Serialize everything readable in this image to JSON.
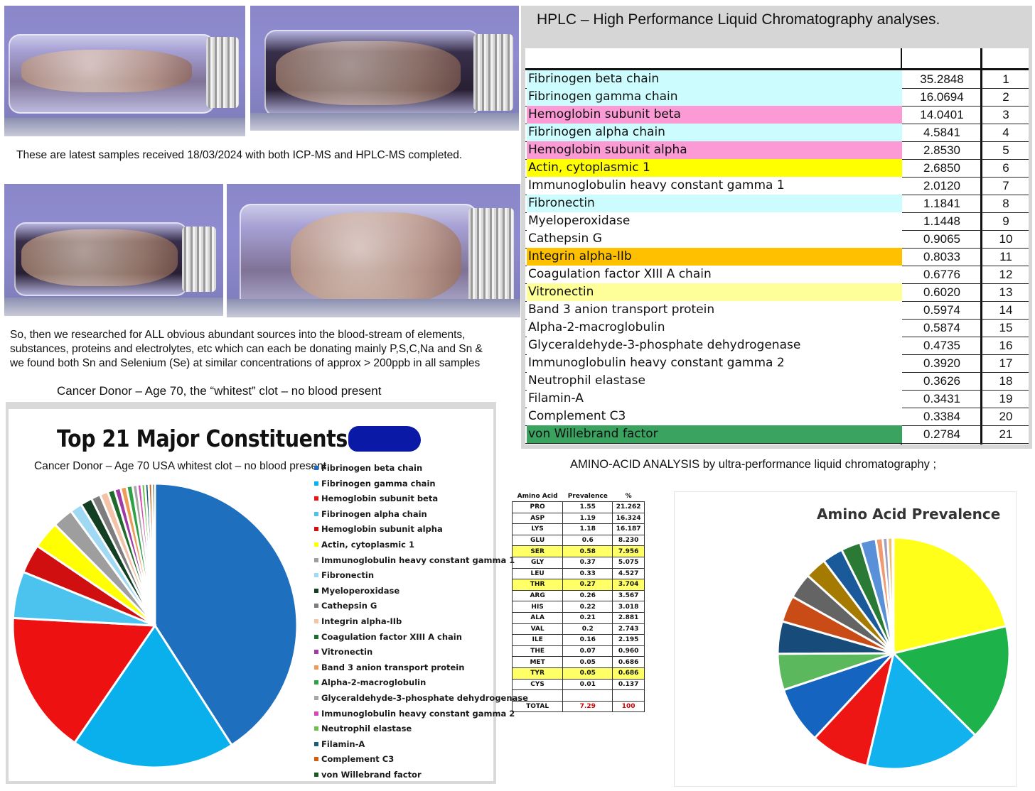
{
  "captions": {
    "samples": "These are latest samples received 18/03/2024 with both ICP-MS and HPLC-MS completed.",
    "research_1": "So, then we researched for ALL obvious abundant sources into the blood-stream of elements,",
    "research_2": "substances, proteins and electrolytes, etc which can each be donating mainly P,S,C,Na and Sn &",
    "research_3": "we found both Sn and Selenium (Se) at similar concentrations of approx > 200ppb in all samples"
  },
  "hplc": {
    "title": "HPLC – High Performance Liquid Chromatography analyses.",
    "rows": [
      {
        "name": "Fibrinogen beta chain",
        "value": "35.2848",
        "rank": "1",
        "color": "#ccfcfd"
      },
      {
        "name": "Fibrinogen gamma chain",
        "value": "16.0694",
        "rank": "2",
        "color": "#ccfcfd"
      },
      {
        "name": "Hemoglobin subunit beta",
        "value": "14.0401",
        "rank": "3",
        "color": "#fb9ad4"
      },
      {
        "name": "Fibrinogen alpha chain",
        "value": "4.5841",
        "rank": "4",
        "color": "#ccfcfd"
      },
      {
        "name": "Hemoglobin subunit alpha",
        "value": "2.8530",
        "rank": "5",
        "color": "#fb9ad4"
      },
      {
        "name": "Actin, cytoplasmic 1",
        "value": "2.6850",
        "rank": "6",
        "color": "#ffff00"
      },
      {
        "name": "Immunoglobulin heavy constant gamma 1",
        "value": "2.0120",
        "rank": "7",
        "color": "#ffffff"
      },
      {
        "name": "Fibronectin",
        "value": "1.1841",
        "rank": "8",
        "color": "#ccfcfd"
      },
      {
        "name": "Myeloperoxidase",
        "value": "1.1448",
        "rank": "9",
        "color": "#ffffff"
      },
      {
        "name": "Cathepsin G",
        "value": "0.9065",
        "rank": "10",
        "color": "#ffffff"
      },
      {
        "name": "Integrin alpha-IIb",
        "value": "0.8033",
        "rank": "11",
        "color": "#ffc000"
      },
      {
        "name": "Coagulation factor XIII A chain",
        "value": "0.6776",
        "rank": "12",
        "color": "#ffffff"
      },
      {
        "name": "Vitronectin",
        "value": "0.6020",
        "rank": "13",
        "color": "#ffff99"
      },
      {
        "name": "Band 3 anion transport protein",
        "value": "0.5974",
        "rank": "14",
        "color": "#ffffff"
      },
      {
        "name": "Alpha-2-macroglobulin",
        "value": "0.5874",
        "rank": "15",
        "color": "#ffffff"
      },
      {
        "name": "Glyceraldehyde-3-phosphate dehydrogenase",
        "value": "0.4735",
        "rank": "16",
        "color": "#ffffff"
      },
      {
        "name": "Immunoglobulin heavy constant gamma 2",
        "value": "0.3920",
        "rank": "17",
        "color": "#ffffff"
      },
      {
        "name": "Neutrophil elastase",
        "value": "0.3626",
        "rank": "18",
        "color": "#ffffff"
      },
      {
        "name": "Filamin-A",
        "value": "0.3431",
        "rank": "19",
        "color": "#ffffff"
      },
      {
        "name": "Complement C3",
        "value": "0.3384",
        "rank": "20",
        "color": "#ffffff"
      },
      {
        "name": "von Willebrand factor",
        "value": "0.2784",
        "rank": "21",
        "color": "#3aa360"
      }
    ]
  },
  "left_panel": {
    "header": "Cancer Donor – Age 70, the “whitest” clot – no blood present",
    "subtitle": "Cancer Donor – Age 70 USA  whitest clot – no blood present"
  },
  "amino": {
    "title": "AMINO-ACID ANALYSIS by ultra-performance liquid chromatography ;",
    "headers": [
      "Amino Acid",
      "Prevalence",
      "%"
    ],
    "rows": [
      {
        "aa": "PRO",
        "prev": "1.55",
        "pct": "21.262",
        "hl": false
      },
      {
        "aa": "ASP",
        "prev": "1.19",
        "pct": "16.324",
        "hl": false
      },
      {
        "aa": "LYS",
        "prev": "1.18",
        "pct": "16.187",
        "hl": false
      },
      {
        "aa": "GLU",
        "prev": "0.6",
        "pct": "8.230",
        "hl": false
      },
      {
        "aa": "SER",
        "prev": "0.58",
        "pct": "7.956",
        "hl": true
      },
      {
        "aa": "GLY",
        "prev": "0.37",
        "pct": "5.075",
        "hl": false
      },
      {
        "aa": "LEU",
        "prev": "0.33",
        "pct": "4.527",
        "hl": false
      },
      {
        "aa": "THR",
        "prev": "0.27",
        "pct": "3.704",
        "hl": true
      },
      {
        "aa": "ARG",
        "prev": "0.26",
        "pct": "3.567",
        "hl": false
      },
      {
        "aa": "HIS",
        "prev": "0.22",
        "pct": "3.018",
        "hl": false
      },
      {
        "aa": "ALA",
        "prev": "0.21",
        "pct": "2.881",
        "hl": false
      },
      {
        "aa": "VAL",
        "prev": "0.2",
        "pct": "2.743",
        "hl": false
      },
      {
        "aa": "ILE",
        "prev": "0.16",
        "pct": "2.195",
        "hl": false
      },
      {
        "aa": "THE",
        "prev": "0.07",
        "pct": "0.960",
        "hl": false
      },
      {
        "aa": "MET",
        "prev": "0.05",
        "pct": "0.686",
        "hl": false
      },
      {
        "aa": "TYR",
        "prev": "0.05",
        "pct": "0.686",
        "hl": true
      },
      {
        "aa": "CYS",
        "prev": "0.01",
        "pct": "0.137",
        "hl": false
      }
    ],
    "total_label": "TOTAL",
    "total_prev": "7.29",
    "total_pct": "100"
  },
  "chart_data": [
    {
      "type": "pie",
      "title": "Top 21 Major Constituents",
      "categories": [
        "Fibrinogen beta chain",
        "Fibrinogen gamma chain",
        "Hemoglobin subunit beta",
        "Fibrinogen alpha chain",
        "Hemoglobin subunit alpha",
        "Actin, cytoplasmic 1",
        "Immunoglobulin heavy constant gamma 1",
        "Fibronectin",
        "Myeloperoxidase",
        "Cathepsin G",
        "Integrin alpha-IIb",
        "Coagulation factor XIII A chain",
        "Vitronectin",
        "Band 3 anion transport protein",
        "Alpha-2-macroglobulin",
        "Glyceraldehyde-3-phosphate dehydrogenase",
        "Immunoglobulin heavy constant gamma 2",
        "Neutrophil elastase",
        "Filamin-A",
        "Complement C3",
        "von Willebrand factor"
      ],
      "values": [
        35.2848,
        16.0694,
        14.0401,
        4.5841,
        2.853,
        2.685,
        2.012,
        1.1841,
        1.1448,
        0.9065,
        0.8033,
        0.6776,
        0.602,
        0.5974,
        0.5874,
        0.4735,
        0.392,
        0.3626,
        0.3431,
        0.3384,
        0.2784
      ],
      "colors": [
        "#1f6fbf",
        "#0ab0ec",
        "#ee1111",
        "#4bc3ee",
        "#d01010",
        "#ffff00",
        "#9e9e9e",
        "#9fd9f4",
        "#123f24",
        "#7d7d7d",
        "#f3c3a8",
        "#1f6b2c",
        "#a03aa6",
        "#ef9a55",
        "#2ea045",
        "#a7a7a7",
        "#d548b6",
        "#6cc04a",
        "#1b5f77",
        "#d05f15",
        "#1d5a22"
      ],
      "legend": "right"
    },
    {
      "type": "pie",
      "title": "Amino Acid Prevalence",
      "categories": [
        "PRO",
        "ASP",
        "LYS",
        "GLU",
        "SER",
        "GLY",
        "LEU",
        "THR",
        "ARG",
        "HIS",
        "ALA",
        "VAL",
        "ILE",
        "THE",
        "MET",
        "TYR",
        "CYS"
      ],
      "values": [
        1.55,
        1.19,
        1.18,
        0.6,
        0.58,
        0.37,
        0.33,
        0.27,
        0.26,
        0.22,
        0.21,
        0.2,
        0.16,
        0.07,
        0.05,
        0.05,
        0.01
      ],
      "colors": [
        "#ffff1a",
        "#1db34a",
        "#12b2ee",
        "#ee1515",
        "#1565c0",
        "#5cb85c",
        "#174b7a",
        "#c94b16",
        "#646464",
        "#a57a00",
        "#1a5a9a",
        "#2a7a36",
        "#5a90d8",
        "#f09a70",
        "#a0a0c0",
        "#f0c070",
        "#7ab8e8"
      ]
    }
  ]
}
